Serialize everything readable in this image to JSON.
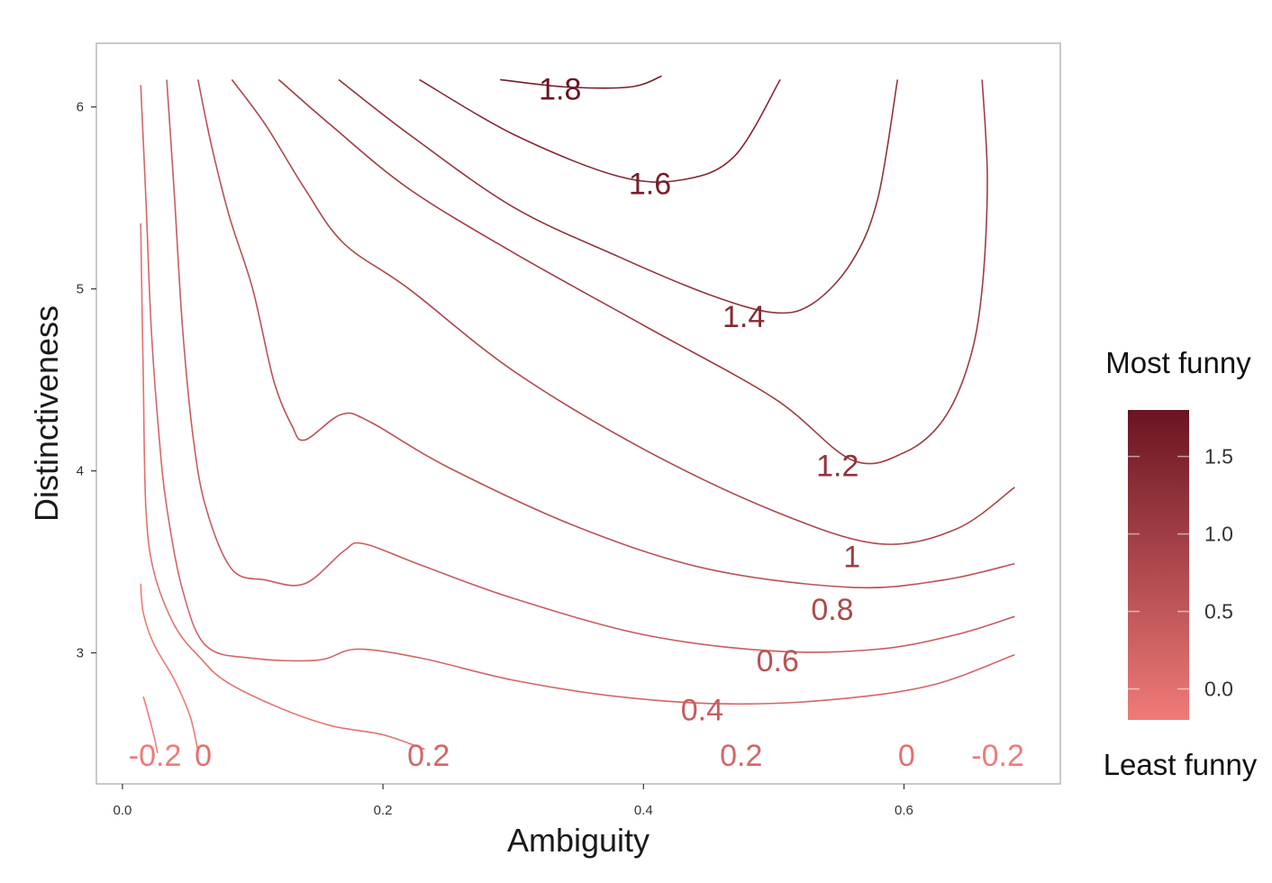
{
  "chart_data": {
    "type": "contour",
    "xlabel": "Ambiguity",
    "ylabel": "Distinctiveness",
    "xlim": [
      -0.02,
      0.72
    ],
    "ylim": [
      2.28,
      6.35
    ],
    "x_ticks": [
      {
        "v": 0.0,
        "label": "0.0"
      },
      {
        "v": 0.2,
        "label": "0.2"
      },
      {
        "v": 0.4,
        "label": "0.4"
      },
      {
        "v": 0.6,
        "label": "0.6"
      }
    ],
    "y_ticks": [
      {
        "v": 3,
        "label": "3"
      },
      {
        "v": 4,
        "label": "4"
      },
      {
        "v": 5,
        "label": "5"
      },
      {
        "v": 6,
        "label": "6"
      }
    ],
    "grid": false,
    "legend": {
      "title_top": "Most funny",
      "title_bottom": "Least funny",
      "placement": "right",
      "range": [
        -0.2,
        1.8
      ],
      "color_low": "#ef7b78",
      "color_high": "#6a1422",
      "ticks": [
        {
          "v": 0.0,
          "label": "0.0"
        },
        {
          "v": 0.5,
          "label": "0.5"
        },
        {
          "v": 1.0,
          "label": "1.0"
        },
        {
          "v": 1.5,
          "label": "1.5"
        }
      ]
    },
    "contours": [
      {
        "level": -0.2,
        "points": [
          [
            0.016,
            2.76
          ],
          [
            0.02,
            2.66
          ],
          [
            0.024,
            2.55
          ],
          [
            0.027,
            2.45
          ]
        ]
      },
      {
        "level": -0.2,
        "points": [
          [
            0.014,
            3.38
          ],
          [
            0.016,
            3.22
          ],
          [
            0.024,
            3.05
          ],
          [
            0.04,
            2.85
          ],
          [
            0.052,
            2.65
          ],
          [
            0.058,
            2.46
          ]
        ]
      },
      {
        "level": 0,
        "points": [
          [
            0.014,
            5.36
          ],
          [
            0.016,
            4.5
          ],
          [
            0.018,
            3.8
          ],
          [
            0.024,
            3.45
          ],
          [
            0.04,
            3.15
          ],
          [
            0.06,
            2.97
          ],
          [
            0.08,
            2.84
          ],
          [
            0.12,
            2.7
          ],
          [
            0.16,
            2.6
          ],
          [
            0.2,
            2.55
          ],
          [
            0.232,
            2.47
          ]
        ]
      },
      {
        "level": 0.2,
        "points": [
          [
            0.014,
            6.12
          ],
          [
            0.018,
            5.5
          ],
          [
            0.022,
            4.8
          ],
          [
            0.028,
            4.2
          ],
          [
            0.034,
            3.8
          ],
          [
            0.046,
            3.35
          ],
          [
            0.064,
            3.04
          ],
          [
            0.1,
            2.97
          ],
          [
            0.15,
            2.96
          ],
          [
            0.18,
            3.02
          ],
          [
            0.23,
            2.97
          ],
          [
            0.3,
            2.85
          ],
          [
            0.38,
            2.76
          ],
          [
            0.46,
            2.72
          ],
          [
            0.54,
            2.74
          ],
          [
            0.62,
            2.82
          ],
          [
            0.685,
            2.99
          ]
        ]
      },
      {
        "level": 0.4,
        "points": [
          [
            0.034,
            6.15
          ],
          [
            0.04,
            5.5
          ],
          [
            0.046,
            4.8
          ],
          [
            0.054,
            4.2
          ],
          [
            0.064,
            3.8
          ],
          [
            0.084,
            3.46
          ],
          [
            0.11,
            3.4
          ],
          [
            0.14,
            3.38
          ],
          [
            0.17,
            3.56
          ],
          [
            0.185,
            3.6
          ],
          [
            0.23,
            3.48
          ],
          [
            0.3,
            3.3
          ],
          [
            0.4,
            3.1
          ],
          [
            0.5,
            3.01
          ],
          [
            0.58,
            3.02
          ],
          [
            0.64,
            3.1
          ],
          [
            0.685,
            3.2
          ]
        ]
      },
      {
        "level": 0.6,
        "points": [
          [
            0.058,
            6.15
          ],
          [
            0.068,
            5.8
          ],
          [
            0.082,
            5.4
          ],
          [
            0.1,
            5.0
          ],
          [
            0.116,
            4.5
          ],
          [
            0.13,
            4.25
          ],
          [
            0.14,
            4.17
          ],
          [
            0.168,
            4.31
          ],
          [
            0.19,
            4.27
          ],
          [
            0.25,
            4.02
          ],
          [
            0.35,
            3.69
          ],
          [
            0.45,
            3.46
          ],
          [
            0.56,
            3.36
          ],
          [
            0.63,
            3.4
          ],
          [
            0.685,
            3.49
          ]
        ]
      },
      {
        "level": 0.8,
        "points": [
          [
            0.084,
            6.15
          ],
          [
            0.11,
            5.9
          ],
          [
            0.14,
            5.55
          ],
          [
            0.17,
            5.25
          ],
          [
            0.22,
            5.0
          ],
          [
            0.3,
            4.55
          ],
          [
            0.4,
            4.12
          ],
          [
            0.5,
            3.78
          ],
          [
            0.58,
            3.6
          ],
          [
            0.64,
            3.68
          ],
          [
            0.685,
            3.91
          ]
        ]
      },
      {
        "level": 1.0,
        "points": [
          [
            0.12,
            6.15
          ],
          [
            0.16,
            5.9
          ],
          [
            0.22,
            5.55
          ],
          [
            0.3,
            5.2
          ],
          [
            0.4,
            4.8
          ],
          [
            0.5,
            4.4
          ],
          [
            0.56,
            4.06
          ],
          [
            0.6,
            4.1
          ],
          [
            0.63,
            4.28
          ],
          [
            0.65,
            4.6
          ],
          [
            0.66,
            5.0
          ],
          [
            0.664,
            5.6
          ],
          [
            0.66,
            6.15
          ]
        ]
      },
      {
        "level": 1.2,
        "points": [
          [
            0.166,
            6.15
          ],
          [
            0.22,
            5.85
          ],
          [
            0.3,
            5.45
          ],
          [
            0.38,
            5.18
          ],
          [
            0.45,
            4.97
          ],
          [
            0.5,
            4.87
          ],
          [
            0.53,
            4.92
          ],
          [
            0.56,
            5.15
          ],
          [
            0.58,
            5.5
          ],
          [
            0.595,
            6.15
          ]
        ]
      },
      {
        "level": 1.4,
        "points": [
          [
            0.228,
            6.15
          ],
          [
            0.3,
            5.85
          ],
          [
            0.38,
            5.62
          ],
          [
            0.43,
            5.6
          ],
          [
            0.47,
            5.73
          ],
          [
            0.505,
            6.15
          ]
        ]
      },
      {
        "level": 1.6,
        "points": [
          [
            0.29,
            6.15
          ],
          [
            0.34,
            6.11
          ],
          [
            0.39,
            6.11
          ],
          [
            0.414,
            6.17
          ]
        ]
      }
    ],
    "contour_labels": [
      {
        "text": "-0.2",
        "x": 0.025,
        "y": 2.38,
        "level": -0.2
      },
      {
        "text": "0",
        "x": 0.062,
        "y": 2.38,
        "level": 0
      },
      {
        "text": "0.2",
        "x": 0.235,
        "y": 2.38,
        "level": 0.2
      },
      {
        "text": "0.2",
        "x": 0.475,
        "y": 2.38,
        "level": 0.2
      },
      {
        "text": "0",
        "x": 0.602,
        "y": 2.38,
        "level": 0
      },
      {
        "text": "-0.2",
        "x": 0.672,
        "y": 2.38,
        "level": -0.2
      },
      {
        "text": "0.4",
        "x": 0.445,
        "y": 2.63,
        "level": 0.4
      },
      {
        "text": "0.6",
        "x": 0.503,
        "y": 2.9,
        "level": 0.6
      },
      {
        "text": "0.8",
        "x": 0.545,
        "y": 3.18,
        "level": 0.8
      },
      {
        "text": "1",
        "x": 0.56,
        "y": 3.47,
        "level": 1.0
      },
      {
        "text": "1.2",
        "x": 0.549,
        "y": 3.97,
        "level": 1.2
      },
      {
        "text": "1.4",
        "x": 0.477,
        "y": 4.79,
        "level": 1.4
      },
      {
        "text": "1.6",
        "x": 0.405,
        "y": 5.52,
        "level": 1.6
      },
      {
        "text": "1.8",
        "x": 0.336,
        "y": 6.04,
        "level": 1.8
      }
    ]
  }
}
